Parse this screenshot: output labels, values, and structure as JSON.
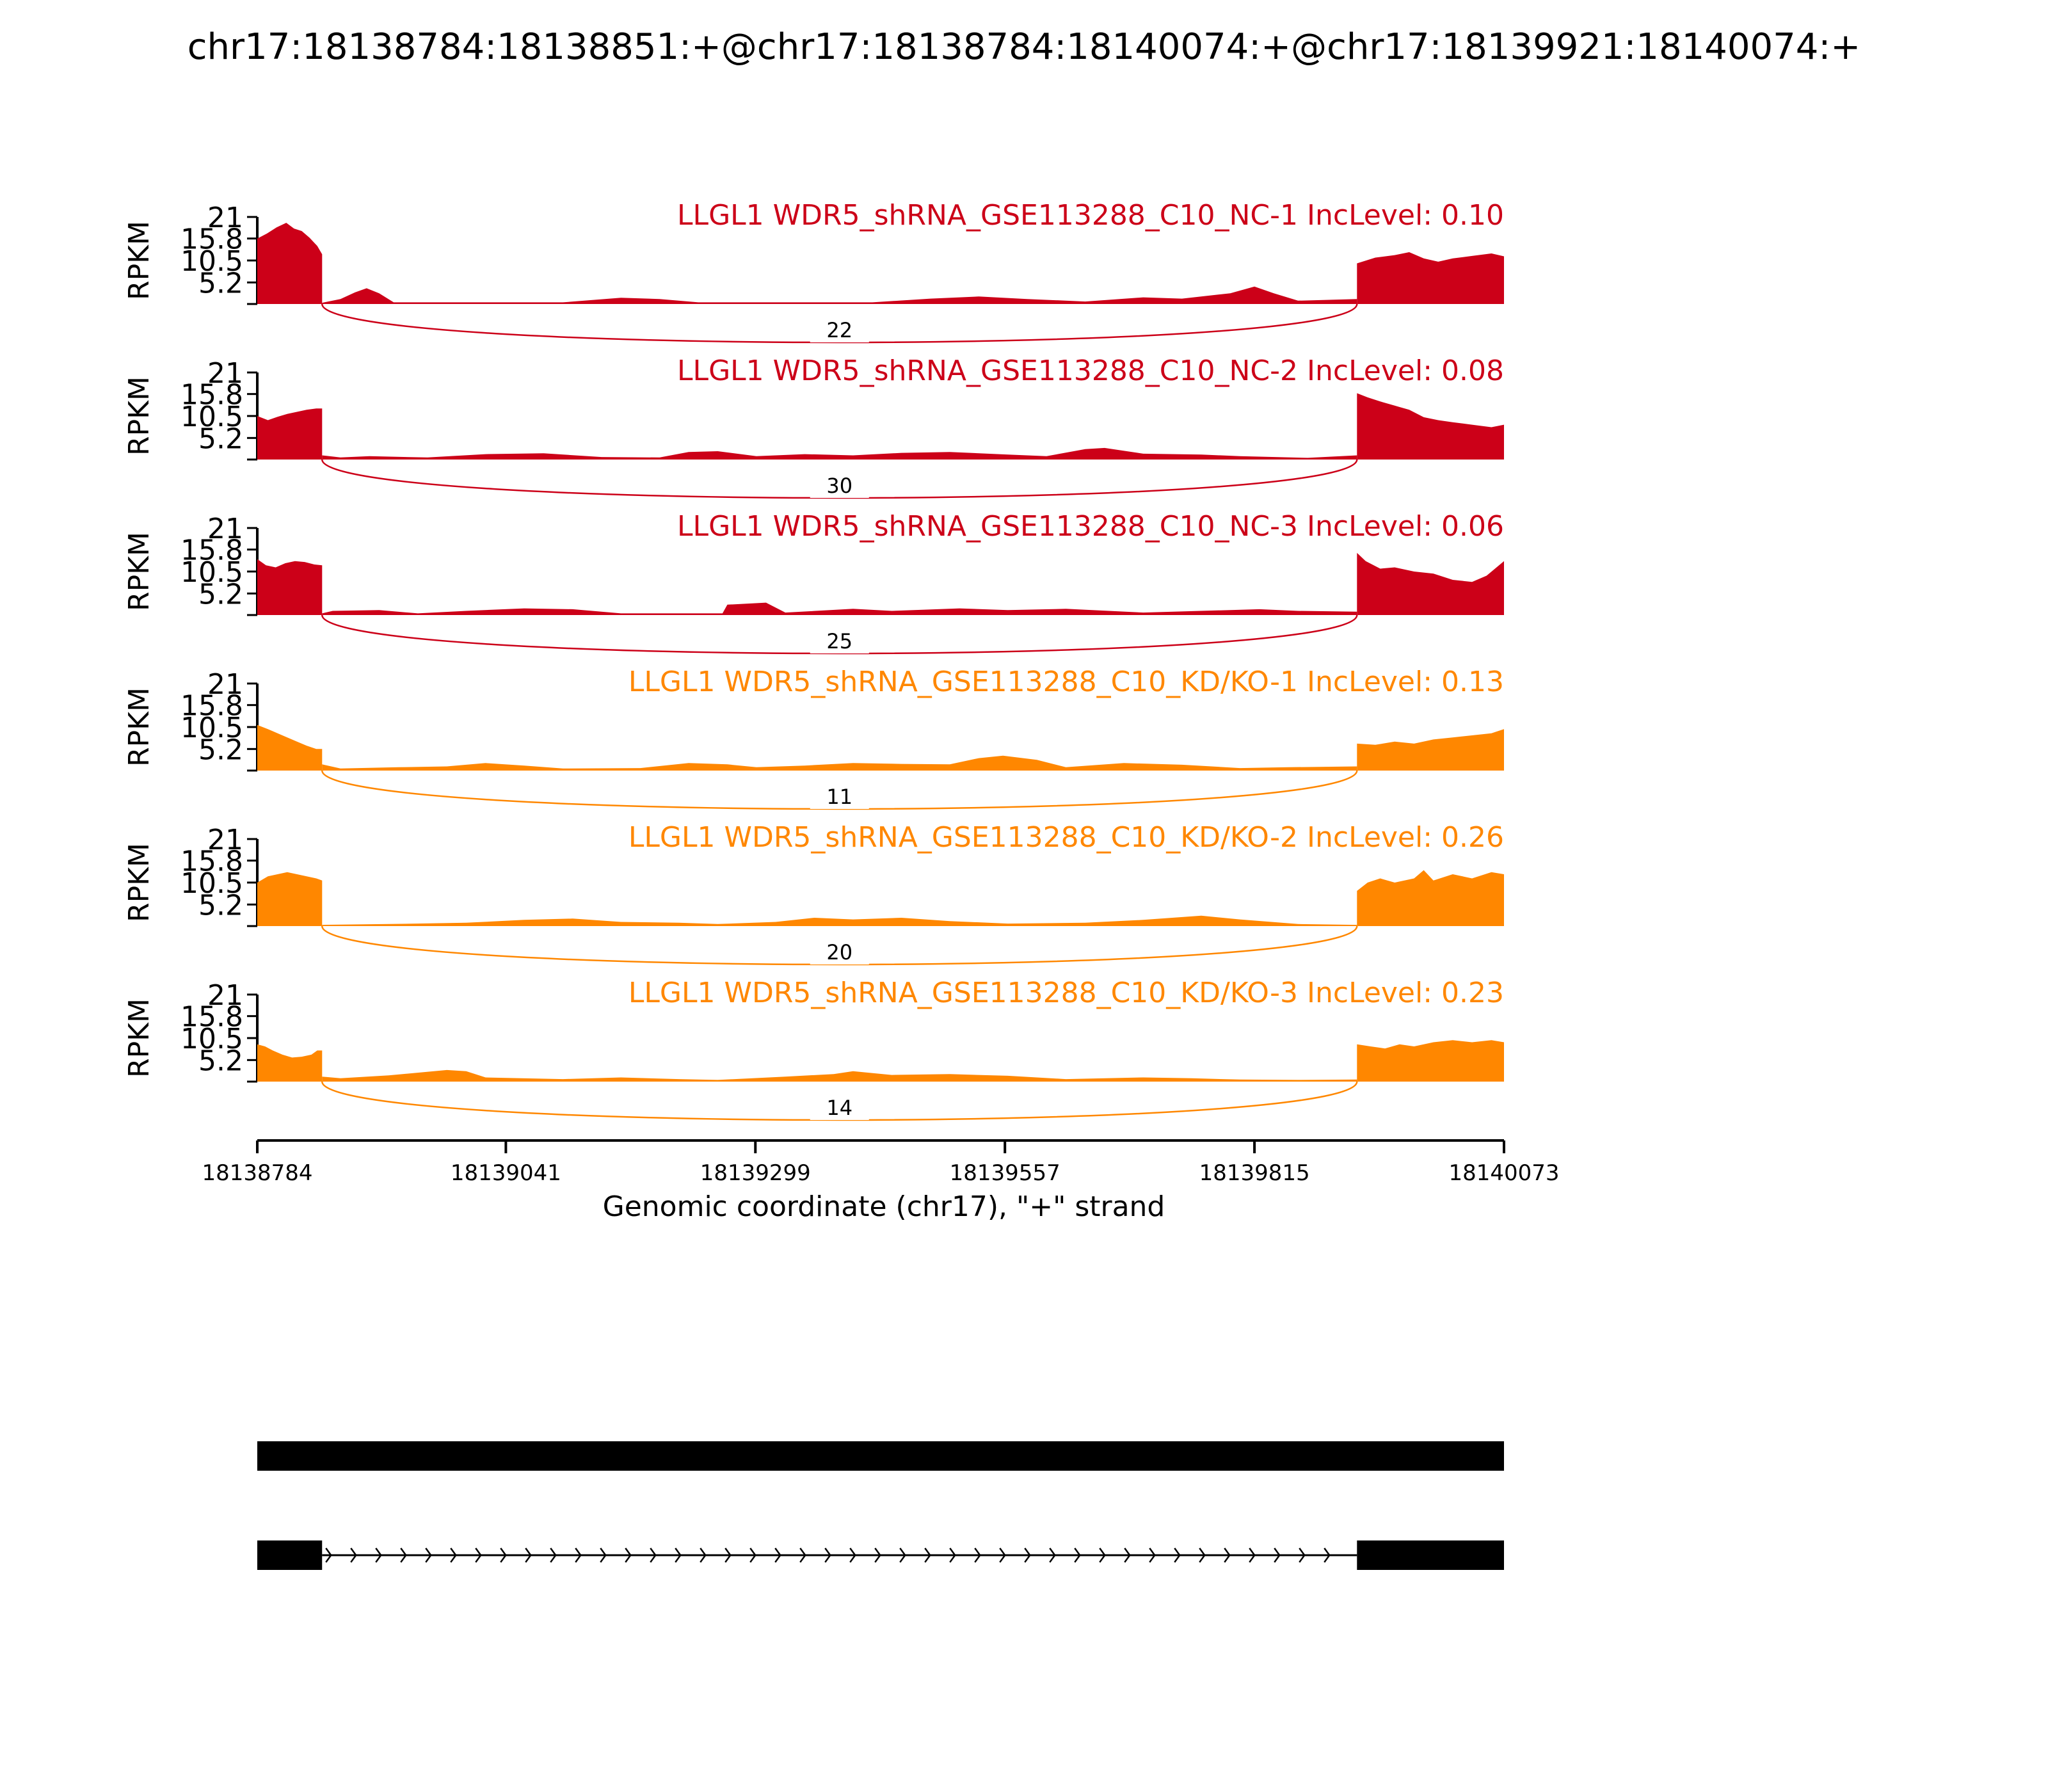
{
  "title": "chr17:18138784:18138851:+@chr17:18138784:18140074:+@chr17:18139921:18140074:+",
  "chart_data": {
    "type": "area",
    "subtype": "sashimi",
    "x_start": 18138784,
    "x_end": 18140073,
    "xlabel": "Genomic coordinate (chr17), \"+\" strand",
    "xticks": [
      18138784,
      18139041,
      18139299,
      18139557,
      18139815,
      18140073
    ],
    "ylabel": "RPKM",
    "yticks": [
      5.2,
      10.5,
      15.8,
      21
    ],
    "ylim": [
      0,
      21
    ],
    "exon1_end": 18138851,
    "exon2_start": 18139921,
    "colors": {
      "NC": "#cc0018",
      "KD": "#ff8700"
    },
    "tracks": [
      {
        "label": "LLGL1 WDR5_shRNA_GSE113288_C10_NC-1 IncLevel: 0.10",
        "color": "#cc0018",
        "junction": "22",
        "exon1": [
          [
            18138784,
            15.8
          ],
          [
            18138794,
            17.0
          ],
          [
            18138804,
            18.5
          ],
          [
            18138814,
            19.6
          ],
          [
            18138822,
            18.2
          ],
          [
            18138830,
            17.6
          ],
          [
            18138838,
            16.0
          ],
          [
            18138846,
            14.0
          ],
          [
            18138851,
            12.0
          ]
        ],
        "intron": [
          [
            18138851,
            0.3
          ],
          [
            18138870,
            1.2
          ],
          [
            18138885,
            2.8
          ],
          [
            18138897,
            3.8
          ],
          [
            18138910,
            2.6
          ],
          [
            18138925,
            0.4
          ],
          [
            18139100,
            0.4
          ],
          [
            18139160,
            1.5
          ],
          [
            18139200,
            1.2
          ],
          [
            18139240,
            0.4
          ],
          [
            18139420,
            0.4
          ],
          [
            18139480,
            1.3
          ],
          [
            18139530,
            1.8
          ],
          [
            18139580,
            1.2
          ],
          [
            18139640,
            0.6
          ],
          [
            18139700,
            1.6
          ],
          [
            18139740,
            1.3
          ],
          [
            18139790,
            2.6
          ],
          [
            18139815,
            4.2
          ],
          [
            18139835,
            2.6
          ],
          [
            18139860,
            0.8
          ],
          [
            18139921,
            1.2
          ]
        ],
        "exon2": [
          [
            18139921,
            9.8
          ],
          [
            18139940,
            11.2
          ],
          [
            18139960,
            11.8
          ],
          [
            18139975,
            12.5
          ],
          [
            18139990,
            11.0
          ],
          [
            18140005,
            10.2
          ],
          [
            18140020,
            11.0
          ],
          [
            18140040,
            11.6
          ],
          [
            18140060,
            12.2
          ],
          [
            18140073,
            11.5
          ]
        ]
      },
      {
        "label": "LLGL1 WDR5_shRNA_GSE113288_C10_NC-2 IncLevel: 0.08",
        "color": "#cc0018",
        "junction": "30",
        "exon1": [
          [
            18138784,
            10.5
          ],
          [
            18138795,
            9.5
          ],
          [
            18138805,
            10.3
          ],
          [
            18138815,
            11.0
          ],
          [
            18138825,
            11.5
          ],
          [
            18138835,
            12.0
          ],
          [
            18138845,
            12.3
          ],
          [
            18138851,
            12.3
          ]
        ],
        "intron": [
          [
            18138851,
            1.0
          ],
          [
            18138870,
            0.5
          ],
          [
            18138900,
            0.8
          ],
          [
            18138960,
            0.5
          ],
          [
            18139020,
            1.3
          ],
          [
            18139080,
            1.5
          ],
          [
            18139140,
            0.6
          ],
          [
            18139200,
            0.5
          ],
          [
            18139230,
            1.8
          ],
          [
            18139260,
            2.0
          ],
          [
            18139300,
            0.8
          ],
          [
            18139350,
            1.3
          ],
          [
            18139400,
            1.0
          ],
          [
            18139450,
            1.6
          ],
          [
            18139500,
            1.8
          ],
          [
            18139560,
            1.2
          ],
          [
            18139600,
            0.8
          ],
          [
            18139640,
            2.5
          ],
          [
            18139660,
            2.8
          ],
          [
            18139700,
            1.4
          ],
          [
            18139760,
            1.2
          ],
          [
            18139800,
            0.8
          ],
          [
            18139870,
            0.4
          ],
          [
            18139921,
            1.0
          ]
        ],
        "exon2": [
          [
            18139921,
            16.0
          ],
          [
            18139932,
            15.0
          ],
          [
            18139945,
            14.0
          ],
          [
            18139960,
            13.0
          ],
          [
            18139975,
            12.0
          ],
          [
            18139990,
            10.2
          ],
          [
            18140005,
            9.5
          ],
          [
            18140020,
            9.0
          ],
          [
            18140040,
            8.4
          ],
          [
            18140060,
            7.8
          ],
          [
            18140073,
            8.4
          ]
        ]
      },
      {
        "label": "LLGL1 WDR5_shRNA_GSE113288_C10_NC-3 IncLevel: 0.06",
        "color": "#cc0018",
        "junction": "25",
        "exon1": [
          [
            18138784,
            13.5
          ],
          [
            18138793,
            12.0
          ],
          [
            18138803,
            11.5
          ],
          [
            18138813,
            12.5
          ],
          [
            18138823,
            13.0
          ],
          [
            18138833,
            12.8
          ],
          [
            18138843,
            12.2
          ],
          [
            18138851,
            12.0
          ]
        ],
        "intron": [
          [
            18138851,
            0.4
          ],
          [
            18138862,
            1.0
          ],
          [
            18138910,
            1.2
          ],
          [
            18138950,
            0.4
          ],
          [
            18139000,
            1.0
          ],
          [
            18139060,
            1.6
          ],
          [
            18139110,
            1.4
          ],
          [
            18139160,
            0.4
          ],
          [
            18139265,
            0.4
          ],
          [
            18139270,
            2.5
          ],
          [
            18139310,
            3.0
          ],
          [
            18139330,
            0.6
          ],
          [
            18139400,
            1.5
          ],
          [
            18139440,
            1.0
          ],
          [
            18139510,
            1.6
          ],
          [
            18139560,
            1.2
          ],
          [
            18139620,
            1.5
          ],
          [
            18139700,
            0.6
          ],
          [
            18139820,
            1.4
          ],
          [
            18139860,
            1.0
          ],
          [
            18139921,
            0.8
          ]
        ],
        "exon2": [
          [
            18139921,
            15.0
          ],
          [
            18139930,
            13.0
          ],
          [
            18139945,
            11.2
          ],
          [
            18139960,
            11.5
          ],
          [
            18139980,
            10.5
          ],
          [
            18140000,
            10.0
          ],
          [
            18140020,
            8.5
          ],
          [
            18140040,
            8.0
          ],
          [
            18140055,
            9.5
          ],
          [
            18140073,
            13.0
          ]
        ]
      },
      {
        "label": "LLGL1 WDR5_shRNA_GSE113288_C10_KD/KO-1 IncLevel: 0.13",
        "color": "#ff8700",
        "junction": "11",
        "exon1": [
          [
            18138784,
            11.0
          ],
          [
            18138795,
            10.0
          ],
          [
            18138805,
            9.0
          ],
          [
            18138815,
            8.0
          ],
          [
            18138825,
            7.0
          ],
          [
            18138835,
            6.0
          ],
          [
            18138845,
            5.2
          ],
          [
            18138851,
            5.2
          ]
        ],
        "intron": [
          [
            18138851,
            1.5
          ],
          [
            18138870,
            0.5
          ],
          [
            18138930,
            0.8
          ],
          [
            18138980,
            1.0
          ],
          [
            18139020,
            1.8
          ],
          [
            18139060,
            1.2
          ],
          [
            18139100,
            0.5
          ],
          [
            18139180,
            0.6
          ],
          [
            18139230,
            1.8
          ],
          [
            18139270,
            1.5
          ],
          [
            18139300,
            0.8
          ],
          [
            18139350,
            1.2
          ],
          [
            18139400,
            1.8
          ],
          [
            18139450,
            1.6
          ],
          [
            18139500,
            1.5
          ],
          [
            18139530,
            3.0
          ],
          [
            18139555,
            3.6
          ],
          [
            18139590,
            2.6
          ],
          [
            18139620,
            0.8
          ],
          [
            18139680,
            1.8
          ],
          [
            18139740,
            1.4
          ],
          [
            18139800,
            0.6
          ],
          [
            18139850,
            0.8
          ],
          [
            18139921,
            1.0
          ]
        ],
        "exon2": [
          [
            18139921,
            6.5
          ],
          [
            18139940,
            6.2
          ],
          [
            18139960,
            7.0
          ],
          [
            18139980,
            6.5
          ],
          [
            18140000,
            7.5
          ],
          [
            18140020,
            8.0
          ],
          [
            18140040,
            8.5
          ],
          [
            18140060,
            9.0
          ],
          [
            18140073,
            10.0
          ]
        ]
      },
      {
        "label": "LLGL1 WDR5_shRNA_GSE113288_C10_KD/KO-2 IncLevel: 0.26",
        "color": "#ff8700",
        "junction": "20",
        "exon1": [
          [
            18138784,
            10.5
          ],
          [
            18138795,
            12.0
          ],
          [
            18138805,
            12.5
          ],
          [
            18138815,
            13.0
          ],
          [
            18138825,
            12.5
          ],
          [
            18138835,
            12.0
          ],
          [
            18138845,
            11.5
          ],
          [
            18138851,
            11.0
          ]
        ],
        "intron": [
          [
            18138851,
            0.3
          ],
          [
            18138920,
            0.5
          ],
          [
            18139000,
            0.8
          ],
          [
            18139060,
            1.5
          ],
          [
            18139110,
            1.8
          ],
          [
            18139160,
            1.0
          ],
          [
            18139220,
            0.8
          ],
          [
            18139260,
            0.5
          ],
          [
            18139320,
            1.0
          ],
          [
            18139360,
            2.0
          ],
          [
            18139400,
            1.6
          ],
          [
            18139450,
            2.0
          ],
          [
            18139500,
            1.2
          ],
          [
            18139560,
            0.6
          ],
          [
            18139640,
            0.8
          ],
          [
            18139700,
            1.5
          ],
          [
            18139760,
            2.5
          ],
          [
            18139800,
            1.6
          ],
          [
            18139860,
            0.5
          ],
          [
            18139921,
            0.3
          ]
        ],
        "exon2": [
          [
            18139921,
            8.5
          ],
          [
            18139932,
            10.5
          ],
          [
            18139945,
            11.5
          ],
          [
            18139960,
            10.5
          ],
          [
            18139980,
            11.5
          ],
          [
            18139990,
            13.5
          ],
          [
            18140000,
            11.0
          ],
          [
            18140020,
            12.5
          ],
          [
            18140040,
            11.5
          ],
          [
            18140060,
            13.0
          ],
          [
            18140073,
            12.5
          ]
        ]
      },
      {
        "label": "LLGL1 WDR5_shRNA_GSE113288_C10_KD/KO-3 IncLevel: 0.23",
        "color": "#ff8700",
        "junction": "14",
        "exon1": [
          [
            18138784,
            9.0
          ],
          [
            18138792,
            8.5
          ],
          [
            18138800,
            7.5
          ],
          [
            18138810,
            6.5
          ],
          [
            18138820,
            5.8
          ],
          [
            18138830,
            6.0
          ],
          [
            18138840,
            6.5
          ],
          [
            18138846,
            7.5
          ],
          [
            18138851,
            7.5
          ]
        ],
        "intron": [
          [
            18138851,
            1.2
          ],
          [
            18138870,
            0.8
          ],
          [
            18138920,
            1.5
          ],
          [
            18138980,
            2.8
          ],
          [
            18139000,
            2.5
          ],
          [
            18139020,
            1.0
          ],
          [
            18139100,
            0.6
          ],
          [
            18139160,
            1.0
          ],
          [
            18139220,
            0.6
          ],
          [
            18139260,
            0.4
          ],
          [
            18139330,
            1.2
          ],
          [
            18139380,
            1.8
          ],
          [
            18139400,
            2.5
          ],
          [
            18139440,
            1.6
          ],
          [
            18139500,
            1.8
          ],
          [
            18139560,
            1.4
          ],
          [
            18139620,
            0.6
          ],
          [
            18139700,
            1.0
          ],
          [
            18139750,
            0.8
          ],
          [
            18139800,
            0.5
          ],
          [
            18139860,
            0.4
          ],
          [
            18139921,
            0.5
          ]
        ],
        "exon2": [
          [
            18139921,
            9.0
          ],
          [
            18139935,
            8.5
          ],
          [
            18139950,
            8.0
          ],
          [
            18139965,
            9.0
          ],
          [
            18139980,
            8.5
          ],
          [
            18140000,
            9.5
          ],
          [
            18140020,
            10.0
          ],
          [
            18140040,
            9.5
          ],
          [
            18140060,
            10.0
          ],
          [
            18140073,
            9.5
          ]
        ]
      }
    ],
    "isoforms": [
      {
        "exons": [
          [
            18138784,
            18140073
          ]
        ]
      },
      {
        "exons": [
          [
            18138784,
            18138851
          ],
          [
            18139921,
            18140073
          ]
        ]
      }
    ]
  }
}
